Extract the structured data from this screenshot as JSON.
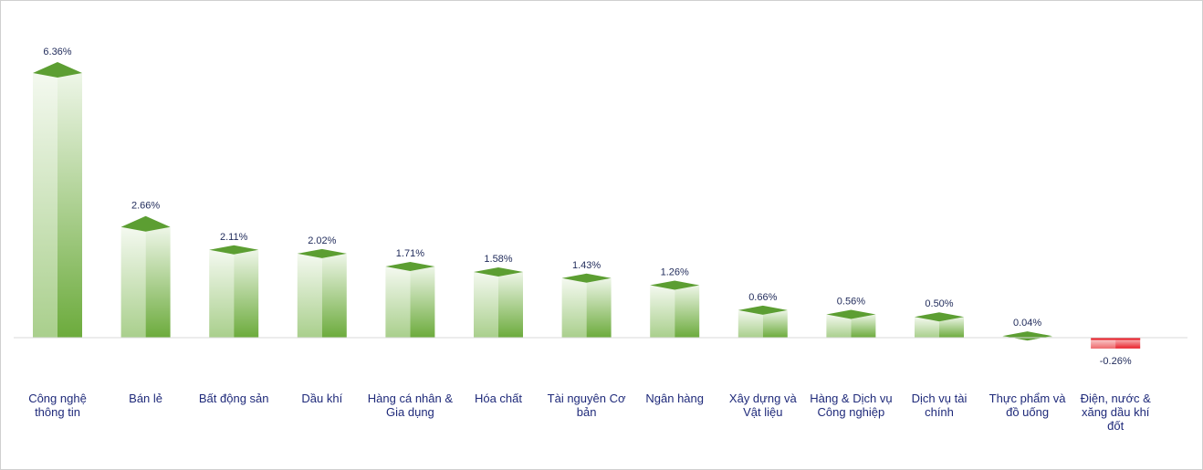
{
  "chart_data": {
    "type": "bar",
    "categories": [
      "Công nghệ thông tin",
      "Bán lẻ",
      "Bất động sản",
      "Dầu khí",
      "Hàng cá nhân & Gia dụng",
      "Hóa chất",
      "Tài nguyên Cơ bản",
      "Ngân hàng",
      "Xây dựng và Vật liệu",
      "Hàng & Dịch vụ Công nghiệp",
      "Dịch vụ tài chính",
      "Thực phẩm và đồ uống",
      "Điện, nước & xăng dầu khí đốt"
    ],
    "category_lines": [
      [
        "Công nghệ",
        "thông tin"
      ],
      [
        "Bán lẻ"
      ],
      [
        "Bất động sản"
      ],
      [
        "Dầu khí"
      ],
      [
        "Hàng cá nhân &",
        "Gia dụng"
      ],
      [
        "Hóa chất"
      ],
      [
        "Tài nguyên Cơ",
        "bản"
      ],
      [
        "Ngân hàng"
      ],
      [
        "Xây dựng và",
        "Vật liệu"
      ],
      [
        "Hàng & Dịch vụ",
        "Công nghiệp"
      ],
      [
        "Dịch vụ tài",
        "chính"
      ],
      [
        "Thực phẩm và",
        "đồ uống"
      ],
      [
        "Điện, nước &",
        "xăng dầu khí",
        "đốt"
      ]
    ],
    "values": [
      6.36,
      2.66,
      2.11,
      2.02,
      1.71,
      1.58,
      1.43,
      1.26,
      0.66,
      0.56,
      0.5,
      0.04,
      -0.26
    ],
    "value_labels": [
      "6.36%",
      "2.66%",
      "2.11%",
      "2.02%",
      "1.71%",
      "1.58%",
      "1.43%",
      "1.26%",
      "0.66%",
      "0.56%",
      "0.50%",
      "0.04%",
      "-0.26%"
    ],
    "unit": "%",
    "grid": false,
    "legend": "none",
    "colors": {
      "positive_light": "#f4f9f0",
      "positive_dark": "#6cab3c",
      "positive_top": "#5c9e32",
      "negative_light": "#fde3e3",
      "negative_dark": "#e8202a",
      "baseline": "#d9d9d9"
    }
  }
}
